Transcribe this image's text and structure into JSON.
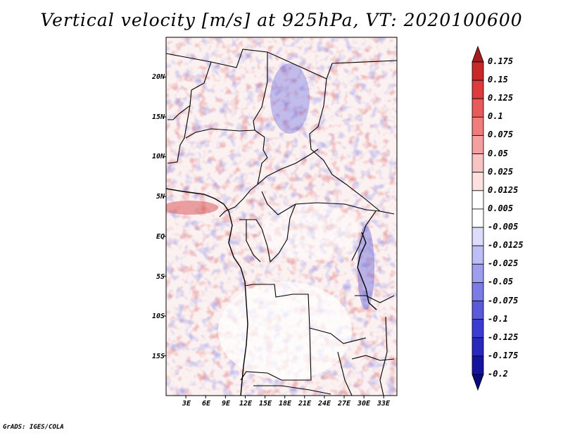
{
  "title": "Vertical velocity [m/s] at 925hPa, VT: 2020100600",
  "credit": "GrADS: IGES/COLA",
  "map": {
    "lon_range": [
      0,
      35
    ],
    "lat_range": [
      -20,
      25
    ],
    "lat_labels": [
      "20N",
      "15N",
      "10N",
      "5N",
      "EQ",
      "5S",
      "10S",
      "15S"
    ],
    "lat_values": [
      20,
      15,
      10,
      5,
      0,
      -5,
      -10,
      -15
    ],
    "lon_labels": [
      "3E",
      "6E",
      "9E",
      "12E",
      "15E",
      "18E",
      "21E",
      "24E",
      "27E",
      "30E",
      "33E"
    ],
    "lon_values": [
      3,
      6,
      9,
      12,
      15,
      18,
      21,
      24,
      27,
      30,
      33
    ]
  },
  "colorbar": {
    "labels": [
      "0.175",
      "0.15",
      "0.125",
      "0.1",
      "0.075",
      "0.05",
      "0.025",
      "0.0125",
      "0.005",
      "-0.005",
      "-0.0125",
      "-0.025",
      "-0.05",
      "-0.075",
      "-0.1",
      "-0.125",
      "-0.175",
      "-0.2"
    ],
    "colors": [
      "#a51c1c",
      "#c82828",
      "#de3c3c",
      "#e95a5a",
      "#f07c7c",
      "#f5a0a0",
      "#fac3c3",
      "#fde0e0",
      "#ffffff",
      "#ffffff",
      "#dcdcfb",
      "#bebef6",
      "#9e9eef",
      "#7c7ce6",
      "#5a5adc",
      "#3c3cd2",
      "#2828be",
      "#1414a0",
      "#0a0a80"
    ]
  }
}
